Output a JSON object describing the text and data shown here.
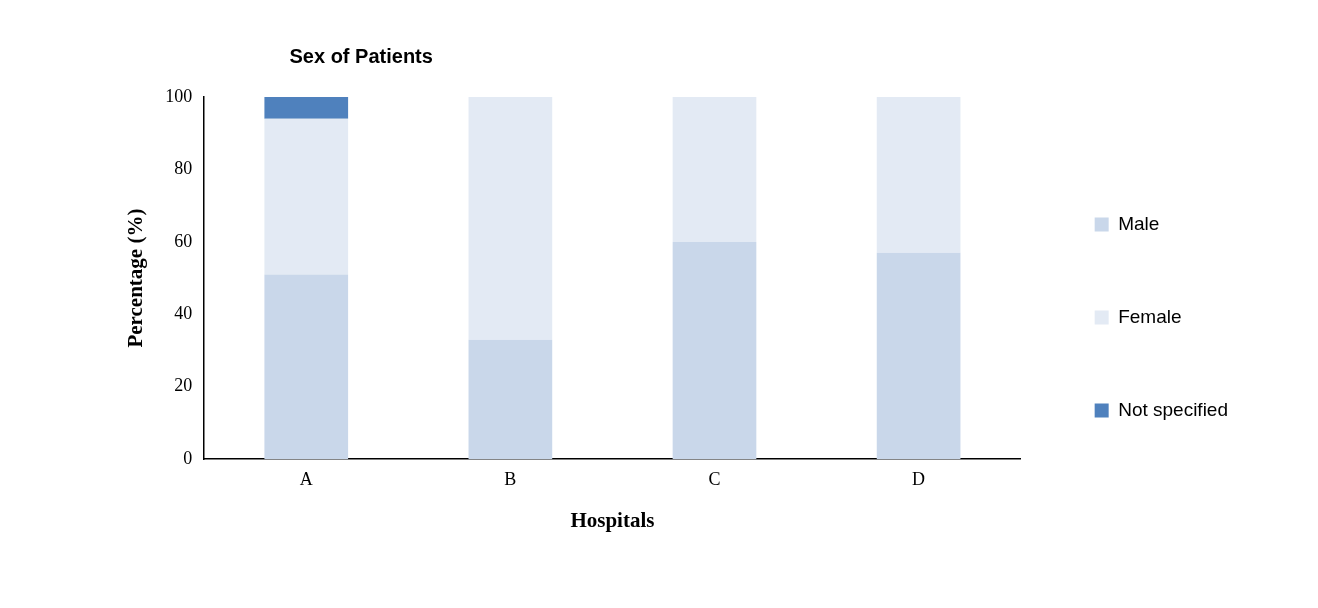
{
  "chart_data": {
    "type": "bar",
    "title": "Sex of Patients",
    "xlabel": "Hospitals",
    "ylabel": "Percentage (%)",
    "categories": [
      "A",
      "B",
      "C",
      "D"
    ],
    "stacked": true,
    "ylim": [
      0,
      100
    ],
    "yticks": [
      0,
      20,
      40,
      60,
      80,
      100
    ],
    "grid": false,
    "legend": "right",
    "series": [
      {
        "name": "Male",
        "color": "#c9d7ea",
        "values": [
          51,
          33,
          60,
          57
        ]
      },
      {
        "name": "Female",
        "color": "#e3eaf4",
        "values": [
          43,
          67,
          40,
          43
        ]
      },
      {
        "name": "Not specified",
        "color": "#4f81bd",
        "values": [
          6,
          0,
          0,
          0
        ]
      }
    ]
  }
}
